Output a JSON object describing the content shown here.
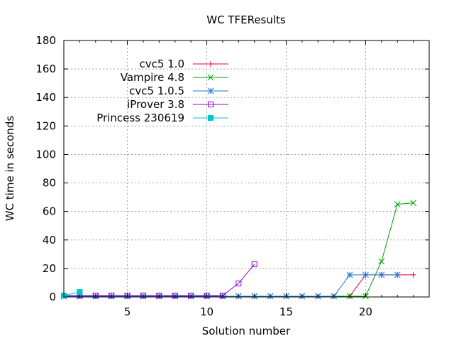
{
  "chart_data": {
    "type": "line",
    "title": "WC TFEResults",
    "xlabel": "Solution number",
    "ylabel": "WC time in seconds",
    "xlim": [
      1,
      24
    ],
    "ylim": [
      0,
      180
    ],
    "xticks": [
      5,
      10,
      15,
      20
    ],
    "yticks": [
      0,
      20,
      40,
      60,
      80,
      100,
      120,
      140,
      160,
      180
    ],
    "grid": true,
    "legend_position": "top-left",
    "series": [
      {
        "name": "cvc5 1.0",
        "color": "#e0002a",
        "marker": "plus",
        "x": [
          1,
          2,
          3,
          4,
          5,
          6,
          7,
          8,
          9,
          10,
          11,
          12,
          13,
          14,
          15,
          16,
          17,
          18,
          19,
          20,
          21,
          22,
          23
        ],
        "y": [
          0.5,
          0.5,
          0.5,
          0.5,
          0.5,
          0.5,
          0.5,
          0.5,
          0.5,
          0.5,
          0.5,
          0.5,
          0.5,
          0.5,
          0.5,
          0.5,
          0.5,
          0.5,
          0.5,
          15.5,
          15.5,
          15.5,
          15.5
        ]
      },
      {
        "name": "Vampire 4.8",
        "color": "#009e00",
        "marker": "cross",
        "x": [
          1,
          2,
          3,
          4,
          5,
          6,
          7,
          8,
          9,
          10,
          11,
          12,
          13,
          14,
          15,
          16,
          17,
          18,
          19,
          20,
          21,
          22,
          23
        ],
        "y": [
          0.5,
          0.5,
          0.5,
          0.5,
          0.5,
          0.5,
          0.5,
          0.5,
          0.5,
          0.5,
          0.5,
          0.5,
          0.5,
          0.5,
          0.5,
          0.5,
          0.5,
          0.5,
          0.5,
          0.5,
          25,
          65,
          66
        ]
      },
      {
        "name": "cvc5 1.0.5",
        "color": "#1e77d3",
        "marker": "star",
        "x": [
          1,
          2,
          3,
          4,
          5,
          6,
          7,
          8,
          9,
          10,
          11,
          12,
          13,
          14,
          15,
          16,
          17,
          18,
          19,
          20,
          21,
          22
        ],
        "y": [
          0.5,
          0.5,
          0.5,
          0.5,
          0.5,
          0.5,
          0.5,
          0.5,
          0.5,
          0.5,
          0.5,
          0.5,
          0.5,
          0.5,
          0.5,
          0.5,
          0.5,
          0.5,
          15.5,
          15.5,
          15.5,
          15.5
        ]
      },
      {
        "name": "iProver 3.8",
        "color": "#9400d3",
        "marker": "open-square",
        "x": [
          1,
          2,
          3,
          4,
          5,
          6,
          7,
          8,
          9,
          10,
          11,
          12,
          13
        ],
        "y": [
          1,
          1,
          1,
          1,
          1,
          1,
          1,
          1,
          1,
          1,
          1,
          9.5,
          23
        ]
      },
      {
        "name": "Princess 230619",
        "color": "#00c8c8",
        "marker": "filled-square",
        "x": [
          1,
          2
        ],
        "y": [
          1,
          3.5
        ]
      }
    ]
  }
}
